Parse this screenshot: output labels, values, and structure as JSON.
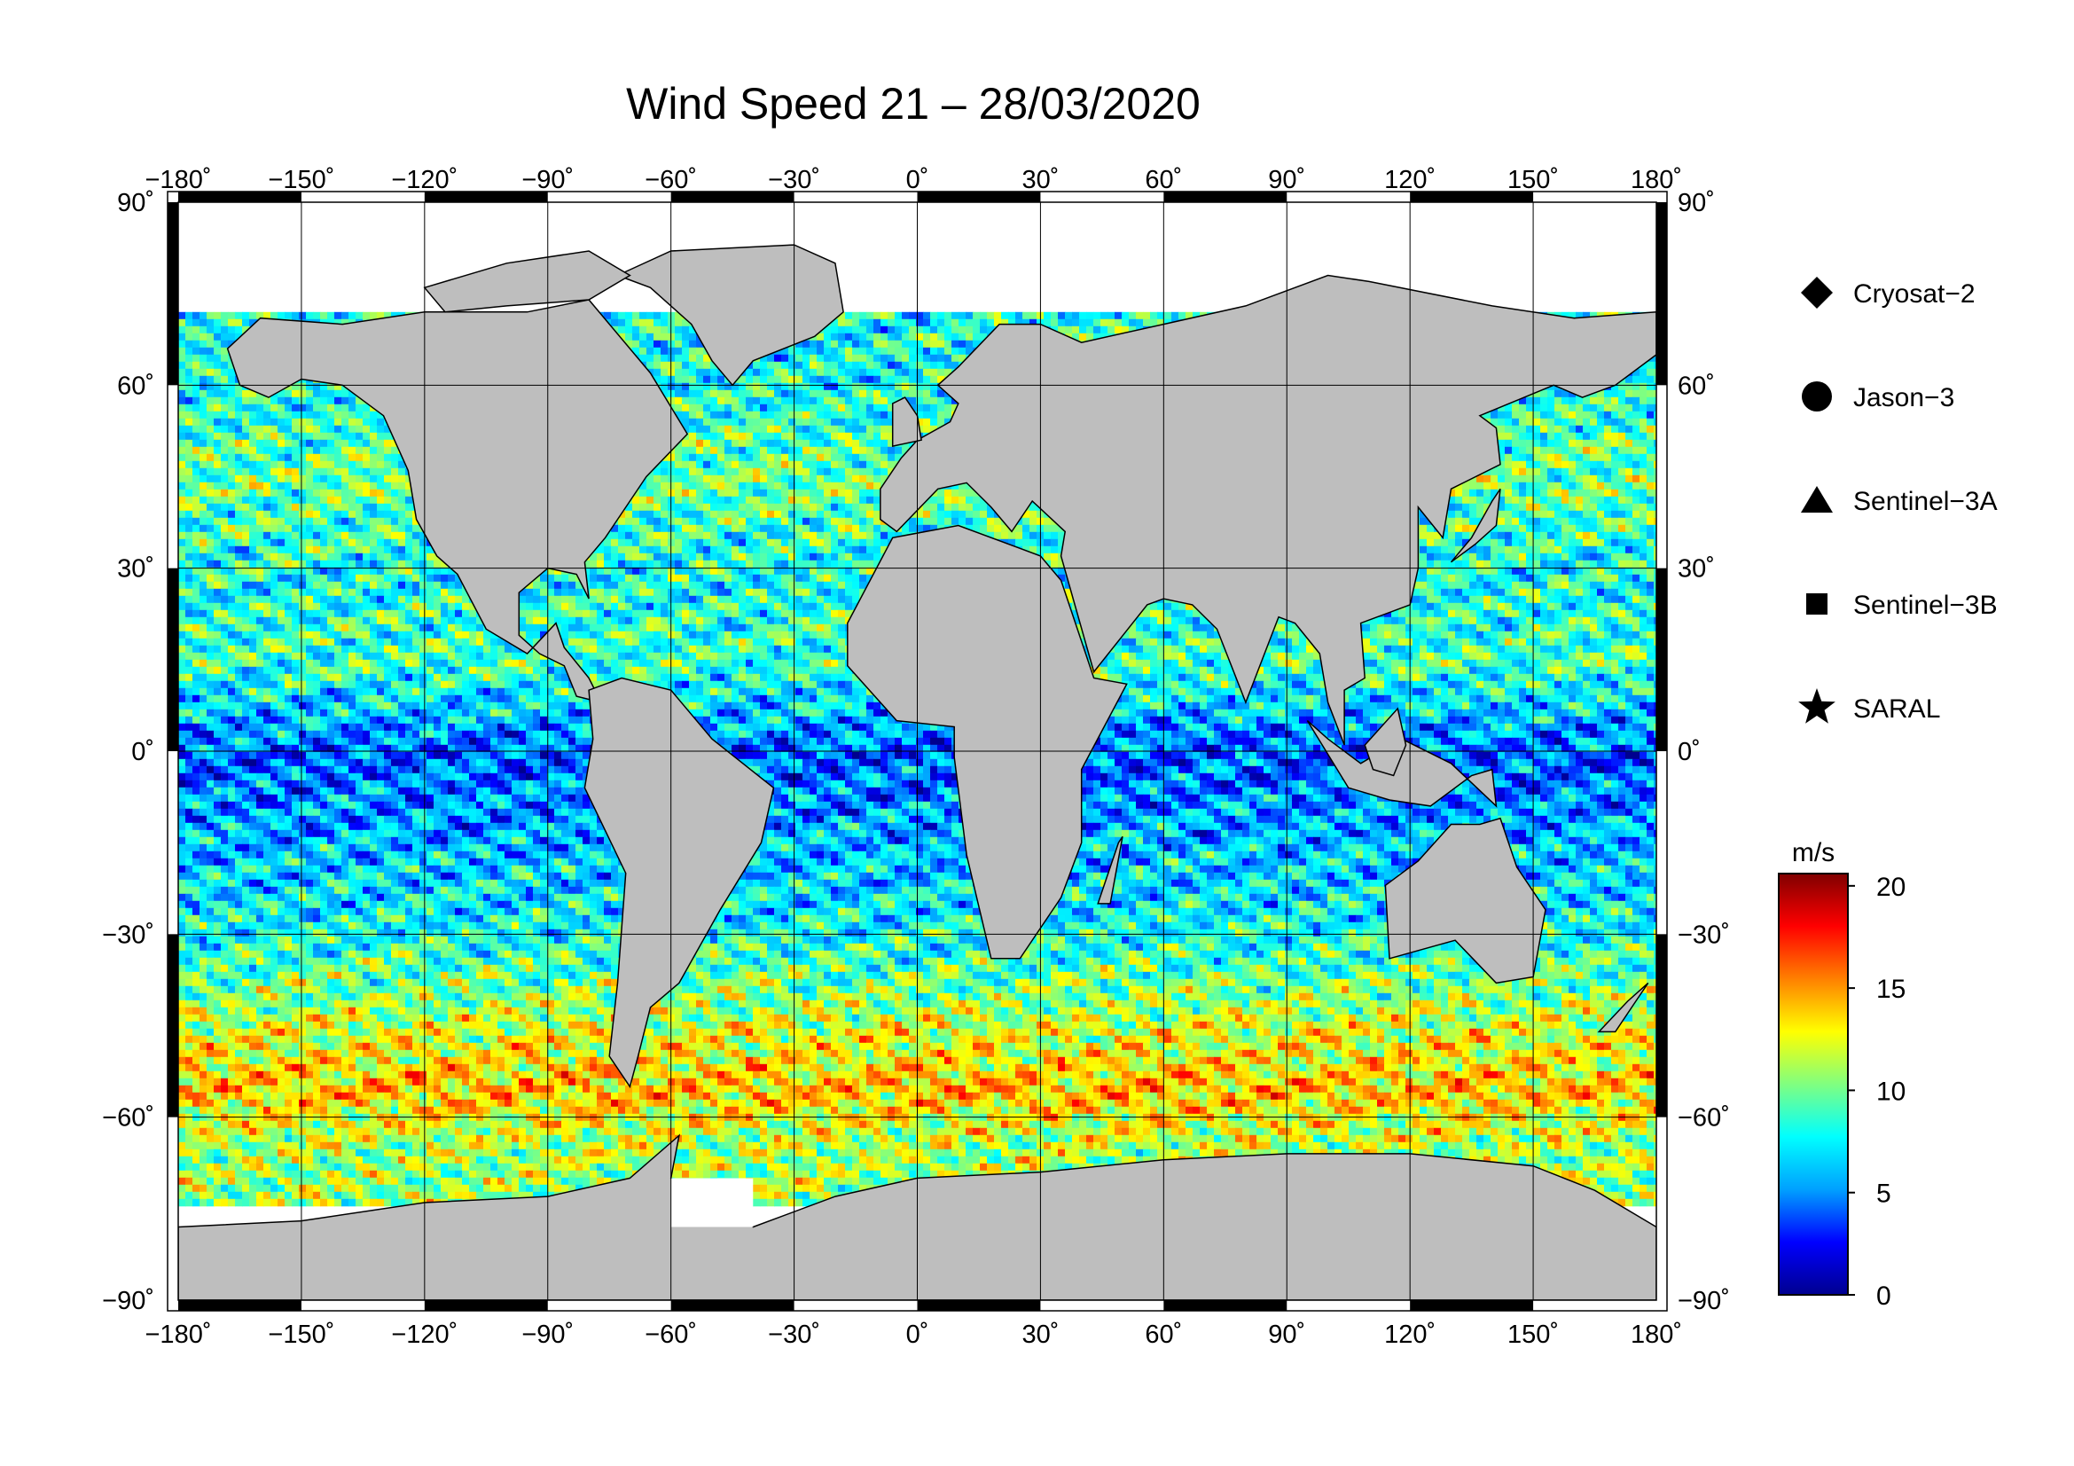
{
  "title": "Wind Speed 21 – 28/03/2020",
  "map": {
    "projection": "equirectangular",
    "lon_range": [
      -180,
      180
    ],
    "lat_range": [
      -90,
      90
    ],
    "top_lon_ticks": [
      "−180˚",
      "−150˚",
      "−120˚",
      "−90˚",
      "−60˚",
      "−30˚",
      "0˚",
      "30˚",
      "60˚",
      "90˚",
      "120˚",
      "150˚",
      "180˚"
    ],
    "bottom_lon_ticks": [
      "−180˚",
      "−150˚",
      "−120˚",
      "−90˚",
      "−60˚",
      "−30˚",
      "0˚",
      "30˚",
      "60˚",
      "90˚",
      "120˚",
      "150˚",
      "180˚"
    ],
    "left_lat_ticks": [
      "90˚",
      "60˚",
      "30˚",
      "0˚",
      "−30˚",
      "−60˚",
      "−90˚"
    ],
    "right_lat_ticks": [
      "90˚",
      "60˚",
      "30˚",
      "0˚",
      "−30˚",
      "−60˚",
      "−90˚"
    ],
    "gridlines": true,
    "land_color": "#bebebe",
    "ice_color": "#ffffff"
  },
  "legend": {
    "items": [
      {
        "marker": "diamond",
        "label": "Cryosat−2"
      },
      {
        "marker": "circle",
        "label": "Jason−3"
      },
      {
        "marker": "triangle",
        "label": "Sentinel−3A"
      },
      {
        "marker": "square",
        "label": "Sentinel−3B"
      },
      {
        "marker": "star",
        "label": "SARAL"
      }
    ]
  },
  "colorbar": {
    "unit": "m/s",
    "min": 0,
    "max": 20.6,
    "ticks": [
      "20",
      "15",
      "10",
      "5",
      "0"
    ],
    "colormap": "jet",
    "stops": [
      "#00008f",
      "#0000ff",
      "#00a0ff",
      "#00ffff",
      "#80ff80",
      "#ffff00",
      "#ff8000",
      "#ff0000",
      "#800000"
    ]
  },
  "chart_data": {
    "type": "heatmap",
    "title": "Wind Speed 21 – 28/03/2020",
    "variable": "wind speed",
    "unit": "m/s",
    "value_range": [
      0,
      20.6
    ],
    "zonal_pattern": [
      {
        "lat": 60,
        "typical_speed": 8
      },
      {
        "lat": 45,
        "typical_speed": 10
      },
      {
        "lat": 30,
        "typical_speed": 8
      },
      {
        "lat": 15,
        "typical_speed": 9
      },
      {
        "lat": 0,
        "typical_speed": 4
      },
      {
        "lat": -15,
        "typical_speed": 6
      },
      {
        "lat": -30,
        "typical_speed": 8
      },
      {
        "lat": -45,
        "typical_speed": 12
      },
      {
        "lat": -55,
        "typical_speed": 14
      },
      {
        "lat": -65,
        "typical_speed": 11
      }
    ]
  }
}
